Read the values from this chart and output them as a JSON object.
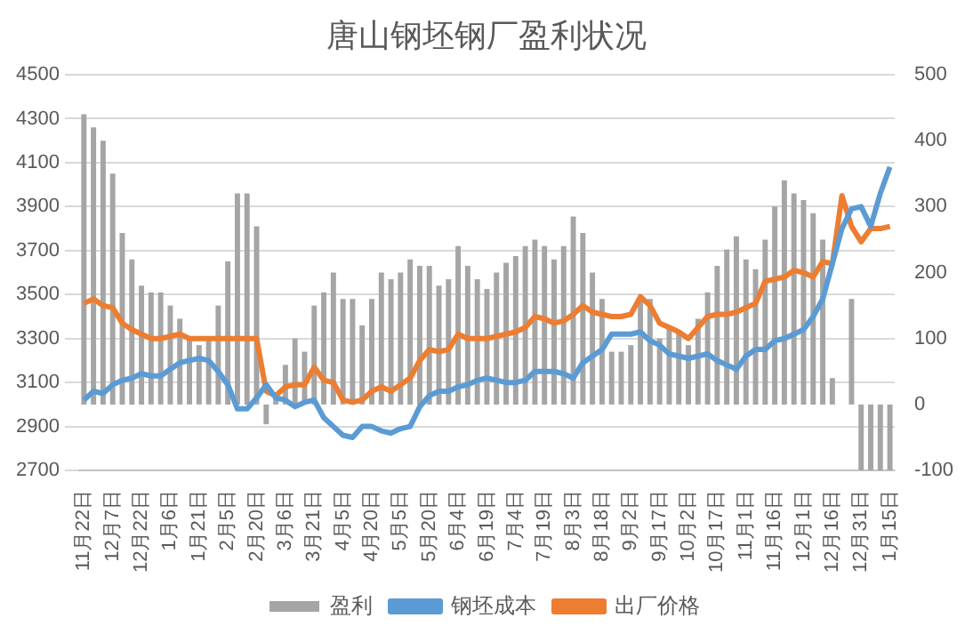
{
  "chart_data": {
    "type": "bar",
    "title": "唐山钢坯钢厂盈利状况",
    "categories": [
      "11月22日",
      null,
      null,
      "12月7日",
      null,
      null,
      "12月22日",
      null,
      null,
      "1月6日",
      null,
      null,
      "1月21日",
      null,
      null,
      "2月5日",
      null,
      null,
      "2月20日",
      null,
      null,
      "3月6日",
      null,
      null,
      "3月21日",
      null,
      null,
      "4月5日",
      null,
      null,
      "4月20日",
      null,
      null,
      "5月5日",
      null,
      null,
      "5月20日",
      null,
      null,
      "6月4日",
      null,
      null,
      "6月19日",
      null,
      null,
      "7月4日",
      null,
      null,
      "7月19日",
      null,
      null,
      "8月3日",
      null,
      null,
      "8月18日",
      null,
      null,
      "9月2日",
      null,
      null,
      "9月17日",
      null,
      null,
      "10月2日",
      null,
      null,
      "10月17日",
      null,
      null,
      "11月1日",
      null,
      null,
      "11月16日",
      null,
      null,
      "12月1日",
      null,
      null,
      "12月16日",
      null,
      null,
      "12月31日",
      null,
      null,
      "1月15日"
    ],
    "series": [
      {
        "name": "盈利",
        "axis": "y2",
        "color": "#a5a5a5",
        "values": [
          440,
          420,
          400,
          350,
          260,
          220,
          180,
          170,
          170,
          150,
          130,
          100,
          90,
          100,
          150,
          217,
          320,
          320,
          270,
          -30,
          10,
          60,
          100,
          80,
          150,
          170,
          200,
          160,
          160,
          120,
          160,
          200,
          190,
          200,
          220,
          210,
          210,
          180,
          190,
          240,
          210,
          190,
          175,
          200,
          215,
          225,
          240,
          250,
          240,
          220,
          240,
          285,
          260,
          200,
          160,
          80,
          80,
          90,
          160,
          160,
          100,
          120,
          110,
          90,
          130,
          170,
          210,
          235,
          255,
          220,
          205,
          250,
          300,
          340,
          320,
          310,
          290,
          250,
          40,
          0,
          160,
          -100,
          -100,
          -100,
          -100
        ]
      },
      {
        "name": "钢坯成本",
        "type": "line",
        "color": "#5b9bd5",
        "values": [
          3020,
          3060,
          3050,
          3090,
          3110,
          3120,
          3140,
          3130,
          3130,
          3160,
          3190,
          3200,
          3210,
          3200,
          3150,
          3090,
          2980,
          2980,
          3030,
          3090,
          3030,
          3020,
          2990,
          3010,
          3020,
          2940,
          2900,
          2860,
          2850,
          2900,
          2900,
          2880,
          2870,
          2890,
          2900,
          2990,
          3040,
          3060,
          3060,
          3080,
          3090,
          3110,
          3120,
          3110,
          3100,
          3100,
          3110,
          3150,
          3150,
          3150,
          3140,
          3120,
          3190,
          3220,
          3250,
          3320,
          3320,
          3320,
          3330,
          3290,
          3270,
          3230,
          3220,
          3210,
          3220,
          3230,
          3200,
          3180,
          3160,
          3220,
          3250,
          3250,
          3290,
          3300,
          3320,
          3340,
          3400,
          3480,
          3640,
          3800,
          3890,
          3900,
          3810,
          3960,
          4080
        ]
      },
      {
        "name": "出厂价格",
        "type": "line",
        "color": "#ed7d31",
        "values": [
          3460,
          3480,
          3450,
          3440,
          3370,
          3340,
          3320,
          3300,
          3300,
          3310,
          3320,
          3300,
          3300,
          3300,
          3300,
          3300,
          3300,
          3300,
          3300,
          3060,
          3040,
          3080,
          3090,
          3090,
          3170,
          3110,
          3100,
          3020,
          3010,
          3020,
          3060,
          3080,
          3060,
          3090,
          3120,
          3200,
          3250,
          3240,
          3250,
          3320,
          3300,
          3300,
          3300,
          3310,
          3320,
          3330,
          3350,
          3400,
          3390,
          3370,
          3380,
          3410,
          3450,
          3420,
          3410,
          3400,
          3400,
          3410,
          3490,
          3450,
          3370,
          3350,
          3330,
          3300,
          3350,
          3400,
          3410,
          3410,
          3420,
          3440,
          3460,
          3560,
          3570,
          3580,
          3610,
          3600,
          3580,
          3650,
          3640,
          3950,
          3810,
          3740,
          3800,
          3800,
          3810
        ]
      }
    ],
    "ylim": [
      2700,
      4500
    ],
    "yticks": [
      2700,
      2900,
      3100,
      3300,
      3500,
      3700,
      3900,
      4100,
      4300,
      4500
    ],
    "y2lim": [
      -100,
      500
    ],
    "y2ticks": [
      -100,
      0,
      100,
      200,
      300,
      400,
      500
    ],
    "grid": "y",
    "legend": "bottom",
    "line_style": "solid",
    "marker": "none"
  }
}
